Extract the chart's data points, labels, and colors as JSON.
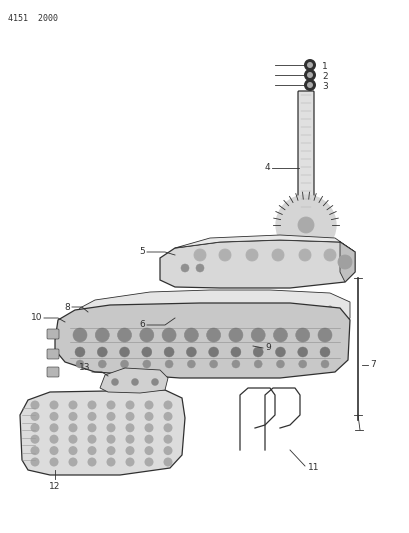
{
  "title": "4151  2000",
  "bg_color": "#ffffff",
  "line_color": "#303030",
  "fig_width": 4.1,
  "fig_height": 5.33,
  "dpi": 100
}
